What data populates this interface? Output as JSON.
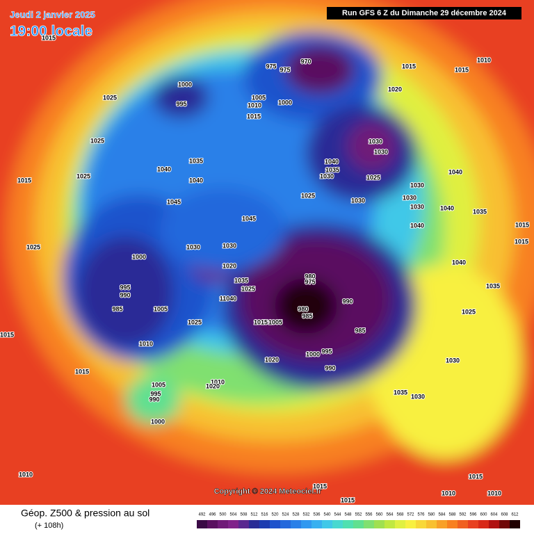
{
  "header": {
    "date": "Jeudi 2 janvier 2025",
    "time": "19:00 locale",
    "run": "Run GFS 6 Z du Dimanche 29 décembre 2024"
  },
  "footer": {
    "copyright": "Copyright © 2024 Meteociel.fr",
    "title": "Géop. Z500 & pression au sol",
    "lead": "(+ 108h)"
  },
  "colorbar": {
    "values": [
      492,
      496,
      500,
      504,
      508,
      512,
      516,
      520,
      524,
      528,
      532,
      536,
      540,
      544,
      548,
      552,
      556,
      560,
      564,
      568,
      572,
      576,
      580,
      584,
      588,
      592,
      596,
      600,
      604,
      608,
      612
    ],
    "colors": [
      "#3a0a45",
      "#5a1060",
      "#701a78",
      "#80228a",
      "#5a2890",
      "#2a2c96",
      "#1c3cb0",
      "#1e52cc",
      "#2468dc",
      "#2a80e8",
      "#3098f0",
      "#38b0f0",
      "#40c8e8",
      "#48d8d0",
      "#50e0b0",
      "#60e090",
      "#80e070",
      "#a0e050",
      "#c0e840",
      "#e0f040",
      "#f8f040",
      "#f8d838",
      "#f8c030",
      "#f8a028",
      "#f88020",
      "#f06020",
      "#e84020",
      "#d82818",
      "#b01010",
      "#700808",
      "#200000"
    ]
  },
  "pressure_labels": [
    "1015",
    "1025",
    "1025",
    "1015",
    "1025",
    "1025",
    "1015",
    "1015",
    "1010",
    "1000",
    "995",
    "975",
    "975",
    "970",
    "1005",
    "1010",
    "1015",
    "1000",
    "1015",
    "1015",
    "1010",
    "1020",
    "1030",
    "1030",
    "1040",
    "1035",
    "1030",
    "1025",
    "1025",
    "1030",
    "1040",
    "1030",
    "1030",
    "1030",
    "1040",
    "1035",
    "1035",
    "1040",
    "1040",
    "1045",
    "1045",
    "1030",
    "1030",
    "1020",
    "1000",
    "995",
    "990",
    "985",
    "1005",
    "1010",
    "1035",
    "1025",
    "11040",
    "1025",
    "1015",
    "1005",
    "980",
    "975",
    "990",
    "980",
    "985",
    "985",
    "1000",
    "995",
    "990",
    "1020",
    "1030",
    "1035",
    "1030",
    "1040",
    "1025",
    "1010",
    "1020",
    "1005",
    "995",
    "990",
    "1000",
    "1015",
    "1015",
    "1010",
    "1015",
    "1010",
    "1015",
    "1015",
    "1035",
    "1040"
  ]
}
